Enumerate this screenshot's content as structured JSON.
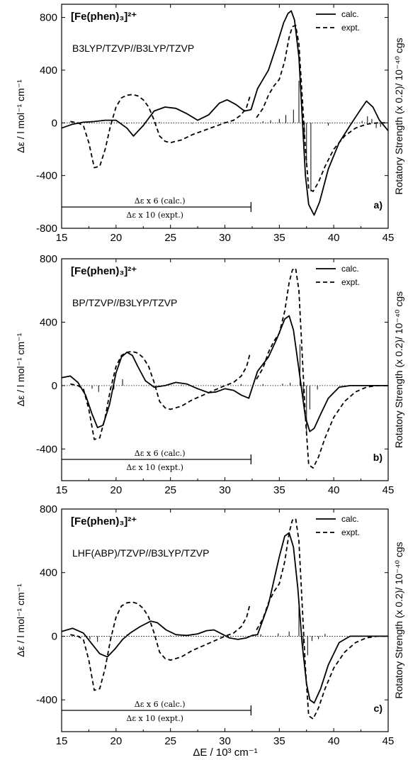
{
  "xlabel": "ΔE / 10³ cm⁻¹",
  "chart_data": [
    {
      "type": "line",
      "panel_label": "a)",
      "formula": "[Fe(phen)₃]²⁺",
      "method": "B3LYP/TZVP//B3LYP/TZVP",
      "ylabel": "Δε / l mol⁻¹ cm⁻¹",
      "ylabel_right": "Rotatory Strength (x 0.2)/ 10⁻⁴⁰ cgs",
      "xlim": [
        15,
        45
      ],
      "ylim": [
        -800,
        900
      ],
      "yticks": [
        800,
        400,
        0,
        -400,
        -800
      ],
      "xticks": [
        15,
        20,
        25,
        30,
        35,
        40,
        45
      ],
      "legend": [
        "calc.",
        "expt."
      ],
      "notes": [
        "Δε x 6 (calc.)",
        "Δε x 10 (expt.)"
      ],
      "note_bar_end": 32.4,
      "series": [
        {
          "name": "calc.",
          "style": "solid",
          "x": [
            15,
            16,
            17,
            18,
            19,
            20,
            21,
            21.6,
            22.5,
            23.5,
            24.5,
            25.5,
            26.5,
            27.5,
            28.5,
            29.5,
            30.2,
            31,
            31.8,
            32.4,
            33,
            34,
            34.8,
            35.4,
            35.8,
            36.1,
            36.4,
            36.8,
            37.1,
            37.4,
            37.7,
            38.2,
            38.7,
            39.5,
            40.5,
            41.5,
            42.3,
            43,
            43.6,
            44.2,
            45
          ],
          "y": [
            -40,
            -10,
            5,
            10,
            20,
            20,
            -40,
            -100,
            -20,
            90,
            120,
            110,
            70,
            20,
            60,
            150,
            175,
            140,
            90,
            100,
            260,
            400,
            600,
            760,
            830,
            850,
            780,
            500,
            50,
            -400,
            -620,
            -700,
            -600,
            -350,
            -150,
            -20,
            80,
            165,
            120,
            20,
            -60
          ]
        },
        {
          "name": "expt.",
          "style": "dashed",
          "x": [
            15.8,
            16.5,
            17,
            17.5,
            18,
            18.5,
            19,
            19.5,
            20,
            20.5,
            21,
            21.5,
            22,
            22.5,
            23,
            23.5,
            24,
            24.5,
            25,
            26,
            27,
            28,
            29,
            30,
            30.8,
            31.5,
            32,
            32.3
          ],
          "y": [
            10,
            0,
            -20,
            -150,
            -340,
            -330,
            -200,
            -20,
            120,
            190,
            210,
            215,
            205,
            175,
            120,
            20,
            -100,
            -140,
            -150,
            -130,
            -90,
            -60,
            -30,
            0,
            20,
            60,
            120,
            200
          ]
        },
        {
          "name": "expt.",
          "style": "dashed",
          "x": [
            32.9,
            33.5,
            34,
            34.5,
            35,
            35.5,
            35.9,
            36.2,
            36.5,
            36.8,
            37.1,
            37.4,
            37.7,
            38.1,
            38.6,
            39.2,
            40,
            41,
            42,
            43,
            44,
            45
          ],
          "y": [
            40,
            110,
            210,
            280,
            330,
            470,
            650,
            730,
            740,
            600,
            200,
            -200,
            -500,
            -520,
            -450,
            -330,
            -200,
            -100,
            -40,
            -10,
            0,
            0
          ]
        }
      ]
    },
    {
      "type": "line",
      "panel_label": "b)",
      "formula": "[Fe(phen)₃]²⁺",
      "method": "BP/TZVP//B3LYP/TZVP",
      "ylabel": "Δε / l mol⁻¹ cm⁻¹",
      "ylabel_right": "Rotatory Strength (x 0.2)/ 10⁻⁴⁰ cgs",
      "xlim": [
        15,
        45
      ],
      "ylim": [
        -600,
        800
      ],
      "yticks": [
        800,
        400,
        0,
        -400
      ],
      "xticks": [
        15,
        20,
        25,
        30,
        35,
        40,
        45
      ],
      "legend": [
        "calc.",
        "expt."
      ],
      "notes": [
        "Δε x 6 (calc.)",
        "Δε x 10 (expt.)"
      ],
      "note_bar_end": 32.4,
      "series": [
        {
          "name": "calc.",
          "style": "solid",
          "x": [
            15,
            15.8,
            16.5,
            17.2,
            17.8,
            18.3,
            18.8,
            19.4,
            20,
            20.5,
            21,
            21.5,
            22,
            22.7,
            23.5,
            24.5,
            25.5,
            26.5,
            27.5,
            28.5,
            29.2,
            30,
            30.8,
            31.5,
            32.2,
            33,
            34,
            34.8,
            35.5,
            35.9,
            36.3,
            36.7,
            37.1,
            37.4,
            37.8,
            38.2,
            38.8,
            39.5,
            40.5,
            41.5,
            43,
            45
          ],
          "y": [
            50,
            60,
            20,
            -60,
            -180,
            -265,
            -250,
            -120,
            80,
            180,
            210,
            190,
            120,
            30,
            -10,
            0,
            20,
            10,
            -20,
            -45,
            -40,
            -20,
            -30,
            -60,
            -80,
            90,
            180,
            300,
            420,
            440,
            350,
            150,
            -50,
            -200,
            -290,
            -270,
            -180,
            -80,
            -10,
            0,
            0,
            0
          ]
        },
        {
          "name": "expt.",
          "style": "dashed",
          "x": [
            15.8,
            16.5,
            17,
            17.5,
            18,
            18.5,
            19,
            19.5,
            20,
            20.5,
            21,
            21.5,
            22,
            22.5,
            23,
            23.5,
            24,
            24.5,
            25,
            26,
            27,
            28,
            29,
            30,
            30.8,
            31.5,
            32,
            32.3
          ],
          "y": [
            10,
            0,
            -20,
            -150,
            -340,
            -330,
            -200,
            -20,
            120,
            190,
            210,
            215,
            205,
            175,
            120,
            20,
            -100,
            -140,
            -150,
            -130,
            -90,
            -60,
            -30,
            0,
            20,
            60,
            120,
            200
          ]
        },
        {
          "name": "expt.",
          "style": "dashed",
          "x": [
            32.9,
            33.5,
            34,
            34.5,
            35,
            35.5,
            35.9,
            36.2,
            36.5,
            36.8,
            37.1,
            37.4,
            37.7,
            38.1,
            38.6,
            39.2,
            40,
            41,
            42,
            43,
            44,
            45
          ],
          "y": [
            40,
            110,
            210,
            280,
            330,
            470,
            650,
            730,
            740,
            600,
            200,
            -200,
            -500,
            -520,
            -450,
            -330,
            -200,
            -100,
            -40,
            -10,
            0,
            0
          ]
        }
      ]
    },
    {
      "type": "line",
      "panel_label": "c)",
      "formula": "[Fe(phen)₃]²⁺",
      "method": "LHF(ABP)/TZVP//B3LYP/TZVP",
      "ylabel": "Δε / l mol⁻¹ cm⁻¹",
      "ylabel_right": "Rotatory Strength (x 0.2)/ 10⁻⁴⁰ cgs",
      "xlim": [
        15,
        45
      ],
      "ylim": [
        -600,
        800
      ],
      "yticks": [
        800,
        400,
        0,
        -400
      ],
      "xticks": [
        15,
        20,
        25,
        30,
        35,
        40,
        45
      ],
      "legend": [
        "calc.",
        "expt."
      ],
      "notes": [
        "Δε x 6 (calc.)",
        "Δε x 10 (expt.)"
      ],
      "note_bar_end": 32.4,
      "series": [
        {
          "name": "calc.",
          "style": "solid",
          "x": [
            15,
            16,
            17,
            17.8,
            18.5,
            19.2,
            19.9,
            20.6,
            21.3,
            22.2,
            23.2,
            23.8,
            24.6,
            25.5,
            26.5,
            27.5,
            28.3,
            29,
            29.7,
            30.4,
            31.2,
            32,
            32.5,
            33,
            34,
            35,
            35.5,
            35.9,
            36.3,
            36.7,
            37.1,
            37.5,
            37.8,
            38.2,
            38.8,
            39.5,
            40.5,
            41.5,
            43,
            45
          ],
          "y": [
            30,
            50,
            20,
            -50,
            -110,
            -130,
            -80,
            -20,
            20,
            60,
            95,
            85,
            40,
            10,
            5,
            15,
            35,
            40,
            15,
            -10,
            -20,
            -10,
            5,
            10,
            200,
            500,
            630,
            650,
            560,
            300,
            -50,
            -300,
            -400,
            -420,
            -330,
            -180,
            -40,
            0,
            0,
            0
          ]
        },
        {
          "name": "expt.",
          "style": "dashed",
          "x": [
            15.8,
            16.5,
            17,
            17.5,
            18,
            18.5,
            19,
            19.5,
            20,
            20.5,
            21,
            21.5,
            22,
            22.5,
            23,
            23.5,
            24,
            24.5,
            25,
            26,
            27,
            28,
            29,
            30,
            30.8,
            31.5,
            32,
            32.3
          ],
          "y": [
            10,
            0,
            -20,
            -150,
            -340,
            -330,
            -200,
            -20,
            120,
            190,
            210,
            215,
            205,
            175,
            120,
            20,
            -100,
            -140,
            -150,
            -130,
            -90,
            -60,
            -30,
            0,
            20,
            60,
            120,
            200
          ]
        },
        {
          "name": "expt.",
          "style": "dashed",
          "x": [
            32.9,
            33.5,
            34,
            34.5,
            35,
            35.5,
            35.9,
            36.2,
            36.5,
            36.8,
            37.1,
            37.4,
            37.7,
            38.1,
            38.6,
            39.2,
            40,
            41,
            42,
            43,
            44,
            45
          ],
          "y": [
            40,
            110,
            210,
            280,
            330,
            470,
            650,
            730,
            740,
            600,
            200,
            -200,
            -500,
            -520,
            -450,
            -330,
            -200,
            -100,
            -40,
            -10,
            0,
            0
          ]
        }
      ]
    }
  ]
}
